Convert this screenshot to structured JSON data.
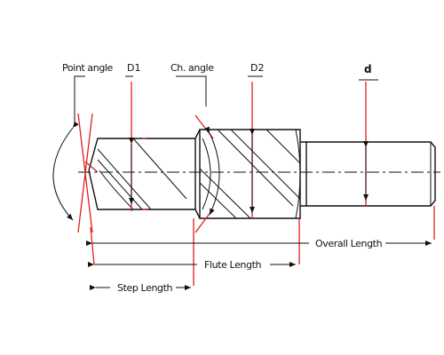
{
  "labels": {
    "point_angle": "Point angle",
    "d1": "D1",
    "ch_angle": "Ch. angle",
    "d2": "D2",
    "d": "d",
    "overall_length": "Overall Length",
    "flute_length": "Flute Length",
    "step_length": "Step Length"
  },
  "colors": {
    "outline": "#111111",
    "dimension_marks": "#e0211f",
    "background": "#ffffff"
  }
}
